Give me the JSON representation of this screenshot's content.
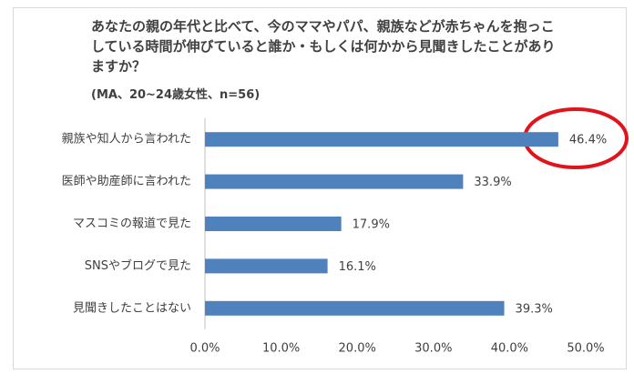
{
  "chart_data": {
    "type": "bar",
    "orientation": "horizontal",
    "title": "あなたの親の年代と比べて、今のママやパパ、親族などが赤ちゃんを抱っこしている時間が伸びていると誰か・もしくは何かから見聞きしたことがありますか？",
    "subtitle": "(MA、20~24歳女性、n=56)",
    "categories": [
      "親族や知人から言われた",
      "医師や助産師に言われた",
      "マスコミの報道で見た",
      "SNSやブログで見た",
      "見聞きしたことはない"
    ],
    "values": [
      46.4,
      33.9,
      17.9,
      16.1,
      39.3
    ],
    "value_labels": [
      "46.4%",
      "33.9%",
      "17.9%",
      "16.1%",
      "39.3%"
    ],
    "color": "#4f81bd",
    "xlim": [
      0,
      50
    ],
    "xticks": [
      {
        "value": 0,
        "label": "0.0%"
      },
      {
        "value": 10,
        "label": "10.0%"
      },
      {
        "value": 20,
        "label": "20.0%"
      },
      {
        "value": 30,
        "label": "30.0%"
      },
      {
        "value": 40,
        "label": "40.0%"
      },
      {
        "value": 50,
        "label": "50.0%"
      }
    ],
    "grid": false
  }
}
